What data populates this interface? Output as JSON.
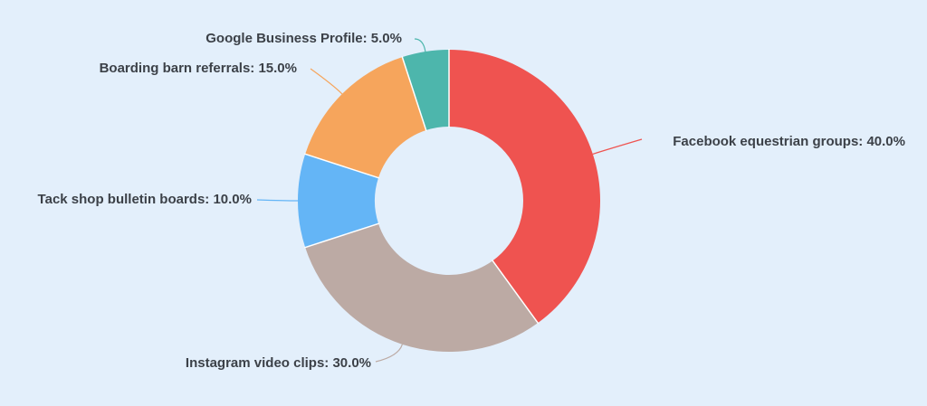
{
  "chart_data": {
    "type": "pie",
    "donut": true,
    "title": "",
    "legend": "none",
    "slices": [
      {
        "label": "Facebook equestrian groups",
        "value": 40.0,
        "value_label": "40.0%",
        "color": "#ef5350"
      },
      {
        "label": "Instagram video clips",
        "value": 30.0,
        "value_label": "30.0%",
        "color": "#bcaaa4"
      },
      {
        "label": "Tack shop bulletin boards",
        "value": 10.0,
        "value_label": "10.0%",
        "color": "#64b5f6"
      },
      {
        "label": "Boarding barn referrals",
        "value": 15.0,
        "value_label": "15.0%",
        "color": "#f6a55c"
      },
      {
        "label": "Google Business Profile",
        "value": 5.0,
        "value_label": "5.0%",
        "color": "#4db6ac"
      }
    ]
  }
}
